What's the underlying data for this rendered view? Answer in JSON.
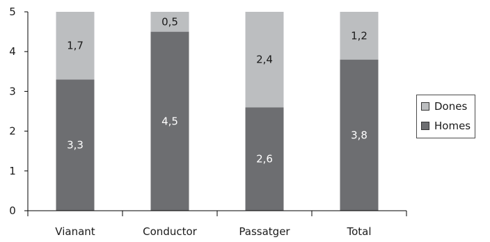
{
  "chart_data": {
    "type": "bar",
    "stacked": true,
    "categories": [
      "Vianant",
      "Conductor",
      "Passatger",
      "Total"
    ],
    "series": [
      {
        "name": "Homes",
        "values": [
          3.3,
          4.5,
          2.6,
          3.8
        ],
        "labels": [
          "3,3",
          "4,5",
          "2,6",
          "3,8"
        ],
        "color": "#6d6e71"
      },
      {
        "name": "Dones",
        "values": [
          1.7,
          0.5,
          2.4,
          1.2
        ],
        "labels": [
          "1,7",
          "0,5",
          "2,4",
          "1,2"
        ],
        "color": "#bcbec0"
      }
    ],
    "ylim": [
      0,
      5
    ],
    "yticks": [
      "0",
      "1",
      "2",
      "3",
      "4",
      "5"
    ],
    "legend_position": "right",
    "grid": false,
    "axis_color": "#000000",
    "label_colors": {
      "Homes": "#ffffff",
      "Dones": "#1a1a1a"
    }
  },
  "legend": [
    {
      "name": "Dones",
      "color": "#bcbec0"
    },
    {
      "name": "Homes",
      "color": "#6d6e71"
    }
  ]
}
